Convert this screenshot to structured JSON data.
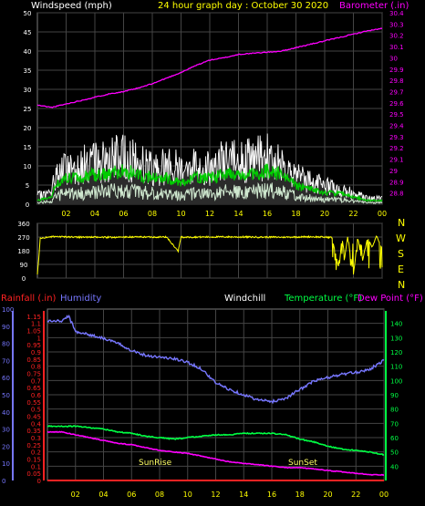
{
  "title": "24 hour graph day : October 30 2020",
  "colors": {
    "background": "#000000",
    "wind": "#ffffff",
    "gust_fill": "#cfe8cf",
    "wind_avg": "#00cc00",
    "barometer": "#ff00ff",
    "direction": "#ffff00",
    "humidity": "#7777ff",
    "temperature": "#00ff44",
    "dewpoint": "#ff00ff",
    "rainfall": "#ff2222",
    "windchill": "#ffffff",
    "sun": "#ffff66",
    "title": "#ffff00"
  },
  "panels": {
    "wind": {
      "left_label": "Windspeed (mph)",
      "right_label": "Barometer (.in)",
      "x_ticks": [
        "02",
        "04",
        "06",
        "08",
        "10",
        "12",
        "14",
        "16",
        "18",
        "20",
        "22",
        "00"
      ]
    },
    "direction": {
      "compass": [
        "N",
        "W",
        "S",
        "E",
        "N"
      ]
    },
    "bottom": {
      "labels": {
        "rainfall": "Rainfall (.in)",
        "humidity": "Humidity",
        "windchill": "Windchill",
        "temperature": "Temperature (°F)",
        "dewpoint": "Dew Point (°F)"
      },
      "annotations": {
        "sunrise": "SunRise",
        "sunset": "SunSet"
      },
      "x_ticks": [
        "02",
        "04",
        "06",
        "08",
        "10",
        "12",
        "14",
        "16",
        "18",
        "20",
        "22",
        "00"
      ]
    }
  },
  "chart_data": [
    {
      "type": "line",
      "panel": "wind",
      "x_unit": "hour",
      "y_left": {
        "label": "Windspeed (mph)",
        "ylim": [
          0,
          50
        ],
        "ticks": [
          "0",
          "5",
          "10",
          "15",
          "20",
          "25",
          "30",
          "35",
          "40",
          "45",
          "50"
        ]
      },
      "y_right": {
        "label": "Barometer (.in)",
        "ylim": [
          28.7,
          30.4
        ],
        "ticks": [
          "28.8",
          "28.9",
          "29",
          "29.1",
          "29.2",
          "29.3",
          "29.4",
          "29.5",
          "29.6",
          "29.7",
          "29.8",
          "29.9",
          "30",
          "30.1",
          "30.2",
          "30.3",
          "30.4"
        ]
      },
      "series": [
        {
          "name": "Barometer (.in)",
          "axis": "right",
          "x": [
            0,
            1,
            2,
            3,
            4,
            5,
            6,
            7,
            8,
            9,
            10,
            11,
            12,
            13,
            14,
            15,
            16,
            17,
            18,
            19,
            20,
            21,
            22,
            23,
            24
          ],
          "values": [
            29.58,
            29.56,
            29.59,
            29.62,
            29.65,
            29.68,
            29.7,
            29.73,
            29.77,
            29.82,
            29.87,
            29.93,
            29.98,
            30.0,
            30.03,
            30.04,
            30.05,
            30.06,
            30.09,
            30.12,
            30.15,
            30.18,
            30.21,
            30.24,
            30.26
          ]
        },
        {
          "name": "Gust",
          "axis": "left",
          "x": [
            0,
            1,
            1.2,
            2,
            3,
            4,
            5,
            6,
            7,
            8,
            9,
            10,
            11,
            12,
            13,
            14,
            15,
            16,
            17,
            17.5,
            18,
            19,
            20,
            21,
            22,
            23,
            24
          ],
          "values": [
            3,
            4,
            10,
            13,
            14,
            15,
            16,
            17,
            15,
            13,
            14,
            13,
            14,
            13,
            16,
            15,
            16,
            17,
            16,
            15,
            10,
            8,
            7,
            5,
            4,
            2,
            2
          ]
        },
        {
          "name": "Wind Avg",
          "axis": "left",
          "x": [
            0,
            1,
            1.2,
            2,
            3,
            4,
            5,
            6,
            7,
            8,
            9,
            10,
            11,
            12,
            13,
            14,
            15,
            16,
            17,
            17.5,
            18,
            19,
            20,
            21,
            22,
            23,
            24
          ],
          "values": [
            1,
            2,
            5,
            7,
            7,
            8,
            8,
            9,
            8,
            7,
            7,
            6,
            7,
            7,
            8,
            8,
            8,
            9,
            8,
            7,
            5,
            4,
            3,
            3,
            2,
            1,
            1
          ]
        }
      ]
    },
    {
      "type": "line",
      "panel": "direction",
      "x_unit": "hour",
      "y_left": {
        "label": "",
        "ylim": [
          0,
          360
        ],
        "ticks": [
          "0",
          "90",
          "180",
          "270",
          "360"
        ]
      },
      "series": [
        {
          "name": "Wind Direction",
          "axis": "left",
          "x": [
            0,
            0.2,
            0.4,
            1,
            3,
            5,
            7,
            9,
            9.8,
            10,
            10.2,
            11,
            13,
            15,
            17,
            19,
            20.5,
            21,
            21.2,
            21.4,
            21.6,
            22,
            22.3,
            22.6,
            23,
            23.3,
            23.6,
            24
          ],
          "values": [
            20,
            260,
            265,
            272,
            270,
            268,
            271,
            270,
            175,
            272,
            268,
            270,
            271,
            270,
            269,
            272,
            268,
            60,
            270,
            140,
            270,
            20,
            268,
            100,
            270,
            200,
            280,
            190
          ]
        }
      ]
    },
    {
      "type": "line",
      "panel": "bottom",
      "x_unit": "hour",
      "y_left_outer": {
        "label": "Humidity",
        "ylim": [
          0,
          100
        ],
        "ticks": [
          "0",
          "10",
          "20",
          "30",
          "40",
          "50",
          "60",
          "70",
          "80",
          "90",
          "100"
        ]
      },
      "y_left_inner": {
        "label": "Rainfall (.in)",
        "ylim": [
          0,
          1.2
        ],
        "ticks": [
          "0",
          "0.05",
          "0.1",
          "0.15",
          "0.2",
          "0.25",
          "0.3",
          "0.35",
          "0.4",
          "0.45",
          "0.5",
          "0.55",
          "0.6",
          "0.65",
          "0.7",
          "0.75",
          "0.8",
          "0.85",
          "0.9",
          "0.95",
          "1",
          "1.05",
          "1.1",
          "1.15"
        ]
      },
      "y_right": {
        "label": "Temperature (°F)",
        "ylim": [
          30,
          150
        ],
        "ticks": [
          "40",
          "50",
          "60",
          "70",
          "80",
          "90",
          "100",
          "110",
          "120",
          "130",
          "140"
        ]
      },
      "series": [
        {
          "name": "Humidity",
          "axis": "left_outer",
          "x": [
            0,
            1,
            1.5,
            2,
            3,
            4,
            5,
            6,
            7,
            8,
            9,
            10,
            11,
            12,
            13,
            14,
            15,
            16,
            17,
            18,
            19,
            20,
            21,
            22,
            23,
            24
          ],
          "values": [
            93,
            93,
            96,
            87,
            85,
            83,
            80,
            76,
            73,
            72,
            71,
            69,
            65,
            57,
            53,
            50,
            47,
            46,
            48,
            53,
            58,
            60,
            62,
            63,
            65,
            70
          ]
        },
        {
          "name": "Temperature (°F)",
          "axis": "right",
          "x": [
            0,
            1,
            2,
            3,
            4,
            5,
            6,
            7,
            8,
            9,
            10,
            11,
            12,
            13,
            14,
            15,
            16,
            17,
            18,
            19,
            20,
            21,
            22,
            23,
            24
          ],
          "values": [
            68,
            68,
            68,
            67,
            66,
            64,
            63,
            61,
            60,
            59,
            60,
            61,
            62,
            62,
            63,
            63,
            63,
            62,
            59,
            57,
            54,
            52,
            51,
            50,
            48
          ]
        },
        {
          "name": "Dew Point (°F)",
          "axis": "right",
          "x": [
            0,
            1,
            2,
            3,
            4,
            5,
            6,
            7,
            8,
            9,
            10,
            11,
            12,
            13,
            14,
            15,
            16,
            17,
            18,
            19,
            20,
            21,
            22,
            23,
            24
          ],
          "values": [
            64,
            64,
            62,
            60,
            58,
            56,
            55,
            53,
            51,
            50,
            49,
            47,
            45,
            43,
            42,
            41,
            40,
            39,
            39,
            38,
            37,
            36,
            35,
            34,
            34
          ]
        },
        {
          "name": "Rainfall (.in)",
          "axis": "left_inner",
          "x": [
            0,
            24
          ],
          "values": [
            0,
            0
          ]
        }
      ]
    }
  ]
}
